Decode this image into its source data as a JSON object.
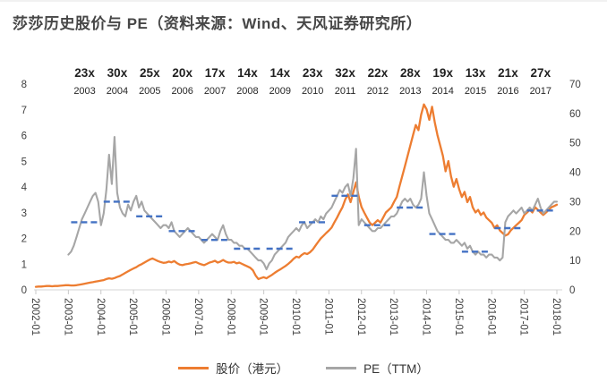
{
  "title": "莎莎历史股价与 PE（资料来源：Wind、天风证券研究所）",
  "legend": {
    "items": [
      {
        "label": "股价（港元）",
        "color": "#ED7D31"
      },
      {
        "label": "PE（TTM）",
        "color": "#A6A6A6"
      }
    ]
  },
  "chart_data": {
    "type": "line",
    "title": "莎莎历史股价与 PE（资料来源：Wind、天风证券研究所）",
    "left_axis": {
      "min": 0,
      "max": 8,
      "ticks": [
        "0",
        "1",
        "2",
        "3",
        "4",
        "5",
        "6",
        "7",
        "8"
      ],
      "series": "股价（港元）"
    },
    "right_axis": {
      "min": 0,
      "max": 70,
      "ticks": [
        "0",
        "10",
        "20",
        "30",
        "40",
        "50",
        "60",
        "70"
      ],
      "series": "PE（TTM）"
    },
    "x_tick_labels": [
      "2002-01",
      "2003-01",
      "2004-01",
      "2005-01",
      "2006-01",
      "2007-01",
      "2008-01",
      "2009-01",
      "2010-01",
      "2011-01",
      "2012-01",
      "2013-01",
      "2014-01",
      "2015-01",
      "2016-01",
      "2017-01",
      "2018-01"
    ],
    "pe_annotations": [
      {
        "year": "2003",
        "multiple": "23x",
        "avg": 23
      },
      {
        "year": "2004",
        "multiple": "30x",
        "avg": 30
      },
      {
        "year": "2005",
        "multiple": "25x",
        "avg": 25
      },
      {
        "year": "2006",
        "multiple": "20x",
        "avg": 20
      },
      {
        "year": "2007",
        "multiple": "17x",
        "avg": 17
      },
      {
        "year": "2008",
        "multiple": "14x",
        "avg": 14
      },
      {
        "year": "2009",
        "multiple": "14x",
        "avg": 14
      },
      {
        "year": "2010",
        "multiple": "23x",
        "avg": 23
      },
      {
        "year": "2011",
        "multiple": "32x",
        "avg": 32
      },
      {
        "year": "2012",
        "multiple": "22x",
        "avg": 22
      },
      {
        "year": "2013",
        "multiple": "28x",
        "avg": 28
      },
      {
        "year": "2014",
        "multiple": "19x",
        "avg": 19
      },
      {
        "year": "2015",
        "multiple": "13x",
        "avg": 13
      },
      {
        "year": "2016",
        "multiple": "21x",
        "avg": 21
      },
      {
        "year": "2017",
        "multiple": "27x",
        "avg": 27
      }
    ],
    "series": [
      {
        "name": "股价（港元）",
        "axis": "left",
        "color": "#ED7D31",
        "start_month": "2002-01",
        "values": [
          0.12,
          0.13,
          0.13,
          0.14,
          0.15,
          0.15,
          0.14,
          0.15,
          0.15,
          0.16,
          0.17,
          0.18,
          0.18,
          0.17,
          0.17,
          0.18,
          0.2,
          0.22,
          0.24,
          0.26,
          0.28,
          0.3,
          0.32,
          0.34,
          0.36,
          0.38,
          0.42,
          0.45,
          0.43,
          0.46,
          0.5,
          0.54,
          0.6,
          0.66,
          0.72,
          0.78,
          0.83,
          0.88,
          0.95,
          1.0,
          1.06,
          1.12,
          1.18,
          1.22,
          1.17,
          1.12,
          1.08,
          1.05,
          1.06,
          1.1,
          1.07,
          1.12,
          1.04,
          0.98,
          0.96,
          0.99,
          1.01,
          1.03,
          1.06,
          1.08,
          1.03,
          0.99,
          0.96,
          1.01,
          1.06,
          1.09,
          1.13,
          1.06,
          1.1,
          1.16,
          1.1,
          1.06,
          1.06,
          1.09,
          1.03,
          1.06,
          1.01,
          0.96,
          0.91,
          0.86,
          0.76,
          0.56,
          0.42,
          0.46,
          0.49,
          0.45,
          0.52,
          0.58,
          0.66,
          0.73,
          0.79,
          0.86,
          0.93,
          1.01,
          1.1,
          1.21,
          1.29,
          1.26,
          1.36,
          1.43,
          1.39,
          1.46,
          1.56,
          1.71,
          1.86,
          2.0,
          2.1,
          2.21,
          2.31,
          2.42,
          2.62,
          2.81,
          3.02,
          3.21,
          3.51,
          3.71,
          3.41,
          3.81,
          4.18,
          3.62,
          3.22,
          3.01,
          2.81,
          2.62,
          2.52,
          2.61,
          2.71,
          2.62,
          2.81,
          3.01,
          3.11,
          3.21,
          3.42,
          3.61,
          4.02,
          4.41,
          4.81,
          5.21,
          5.61,
          6.01,
          6.41,
          6.21,
          6.81,
          7.21,
          7.02,
          6.61,
          7.12,
          6.52,
          6.02,
          5.61,
          5.21,
          4.61,
          5.01,
          4.41,
          4.01,
          4.31,
          3.91,
          3.61,
          3.81,
          3.41,
          3.61,
          3.21,
          3.01,
          3.11,
          2.91,
          3.01,
          2.81,
          2.71,
          2.61,
          2.41,
          2.51,
          2.31,
          2.21,
          2.11,
          2.16,
          2.31,
          2.41,
          2.51,
          2.61,
          2.71,
          2.91,
          3.01,
          3.11,
          3.01,
          3.21,
          3.11,
          3.01,
          2.91,
          3.01,
          3.11,
          3.21,
          3.26,
          3.31
        ]
      },
      {
        "name": "PE（TTM）",
        "axis": "right",
        "color": "#A6A6A6",
        "start_month": "2003-01",
        "values": [
          12,
          13,
          15,
          18,
          21,
          24,
          26,
          28,
          30,
          32,
          33,
          30,
          22,
          26,
          34,
          46,
          36,
          52,
          33,
          28,
          26,
          25,
          29,
          27,
          30,
          32,
          28,
          30,
          27,
          26,
          25,
          24,
          23,
          22,
          21,
          22,
          22,
          21,
          23,
          20,
          19,
          18,
          19,
          20,
          21,
          20,
          19,
          18,
          18,
          17,
          16,
          17,
          18,
          19,
          18,
          17,
          20,
          22,
          19,
          17,
          17,
          16,
          16,
          15,
          15,
          14,
          14,
          13,
          12,
          11,
          10,
          10,
          9,
          7,
          9,
          10,
          12,
          13,
          14,
          15,
          16,
          18,
          19,
          20,
          21,
          20,
          22,
          23,
          21,
          22,
          23,
          24,
          23,
          25,
          24,
          26,
          27,
          28,
          30,
          32,
          34,
          33,
          35,
          36,
          32,
          38,
          48,
          22,
          24,
          23,
          22,
          21,
          20,
          20,
          21,
          21,
          22,
          23,
          24,
          25,
          25,
          26,
          28,
          30,
          31,
          30,
          31,
          29,
          28,
          29,
          31,
          40,
          32,
          26,
          24,
          22,
          20,
          19,
          18,
          17,
          17,
          16,
          16,
          17,
          16,
          15,
          16,
          14,
          15,
          13,
          12,
          13,
          12,
          12,
          11,
          12,
          12,
          11,
          11,
          10,
          11,
          23,
          25,
          26,
          27,
          26,
          27,
          28,
          26,
          27,
          28,
          27,
          29,
          31,
          28,
          26,
          27,
          28,
          29,
          30,
          30
        ]
      }
    ]
  }
}
